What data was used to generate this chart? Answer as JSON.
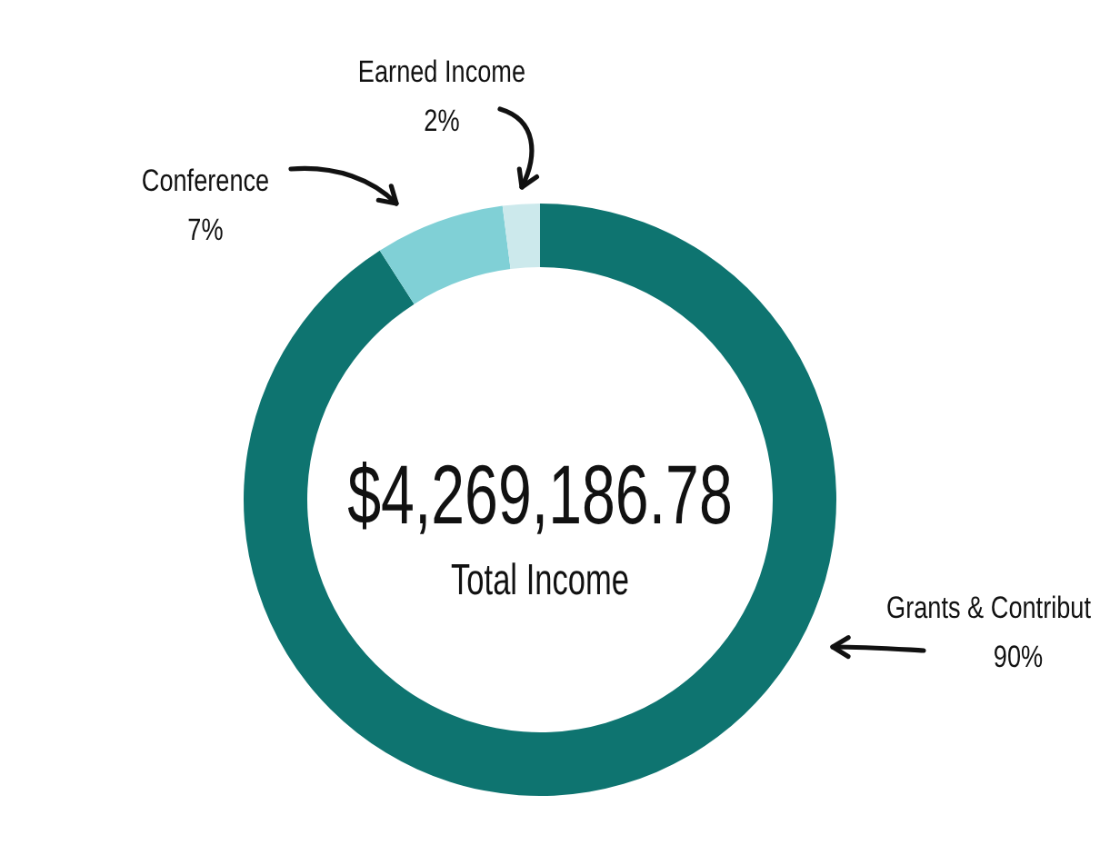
{
  "chart_data": {
    "type": "donut",
    "categories": [
      "Grants & Contribut",
      "Conference",
      "Earned Income"
    ],
    "values": [
      90,
      7,
      2
    ],
    "colors": [
      "#0e7470",
      "#80d0d6",
      "#cce9ec"
    ],
    "value_labels": [
      "90%",
      "7%",
      "2%"
    ],
    "annotations": [
      "$4,269,186.78",
      "Total Income"
    ]
  }
}
